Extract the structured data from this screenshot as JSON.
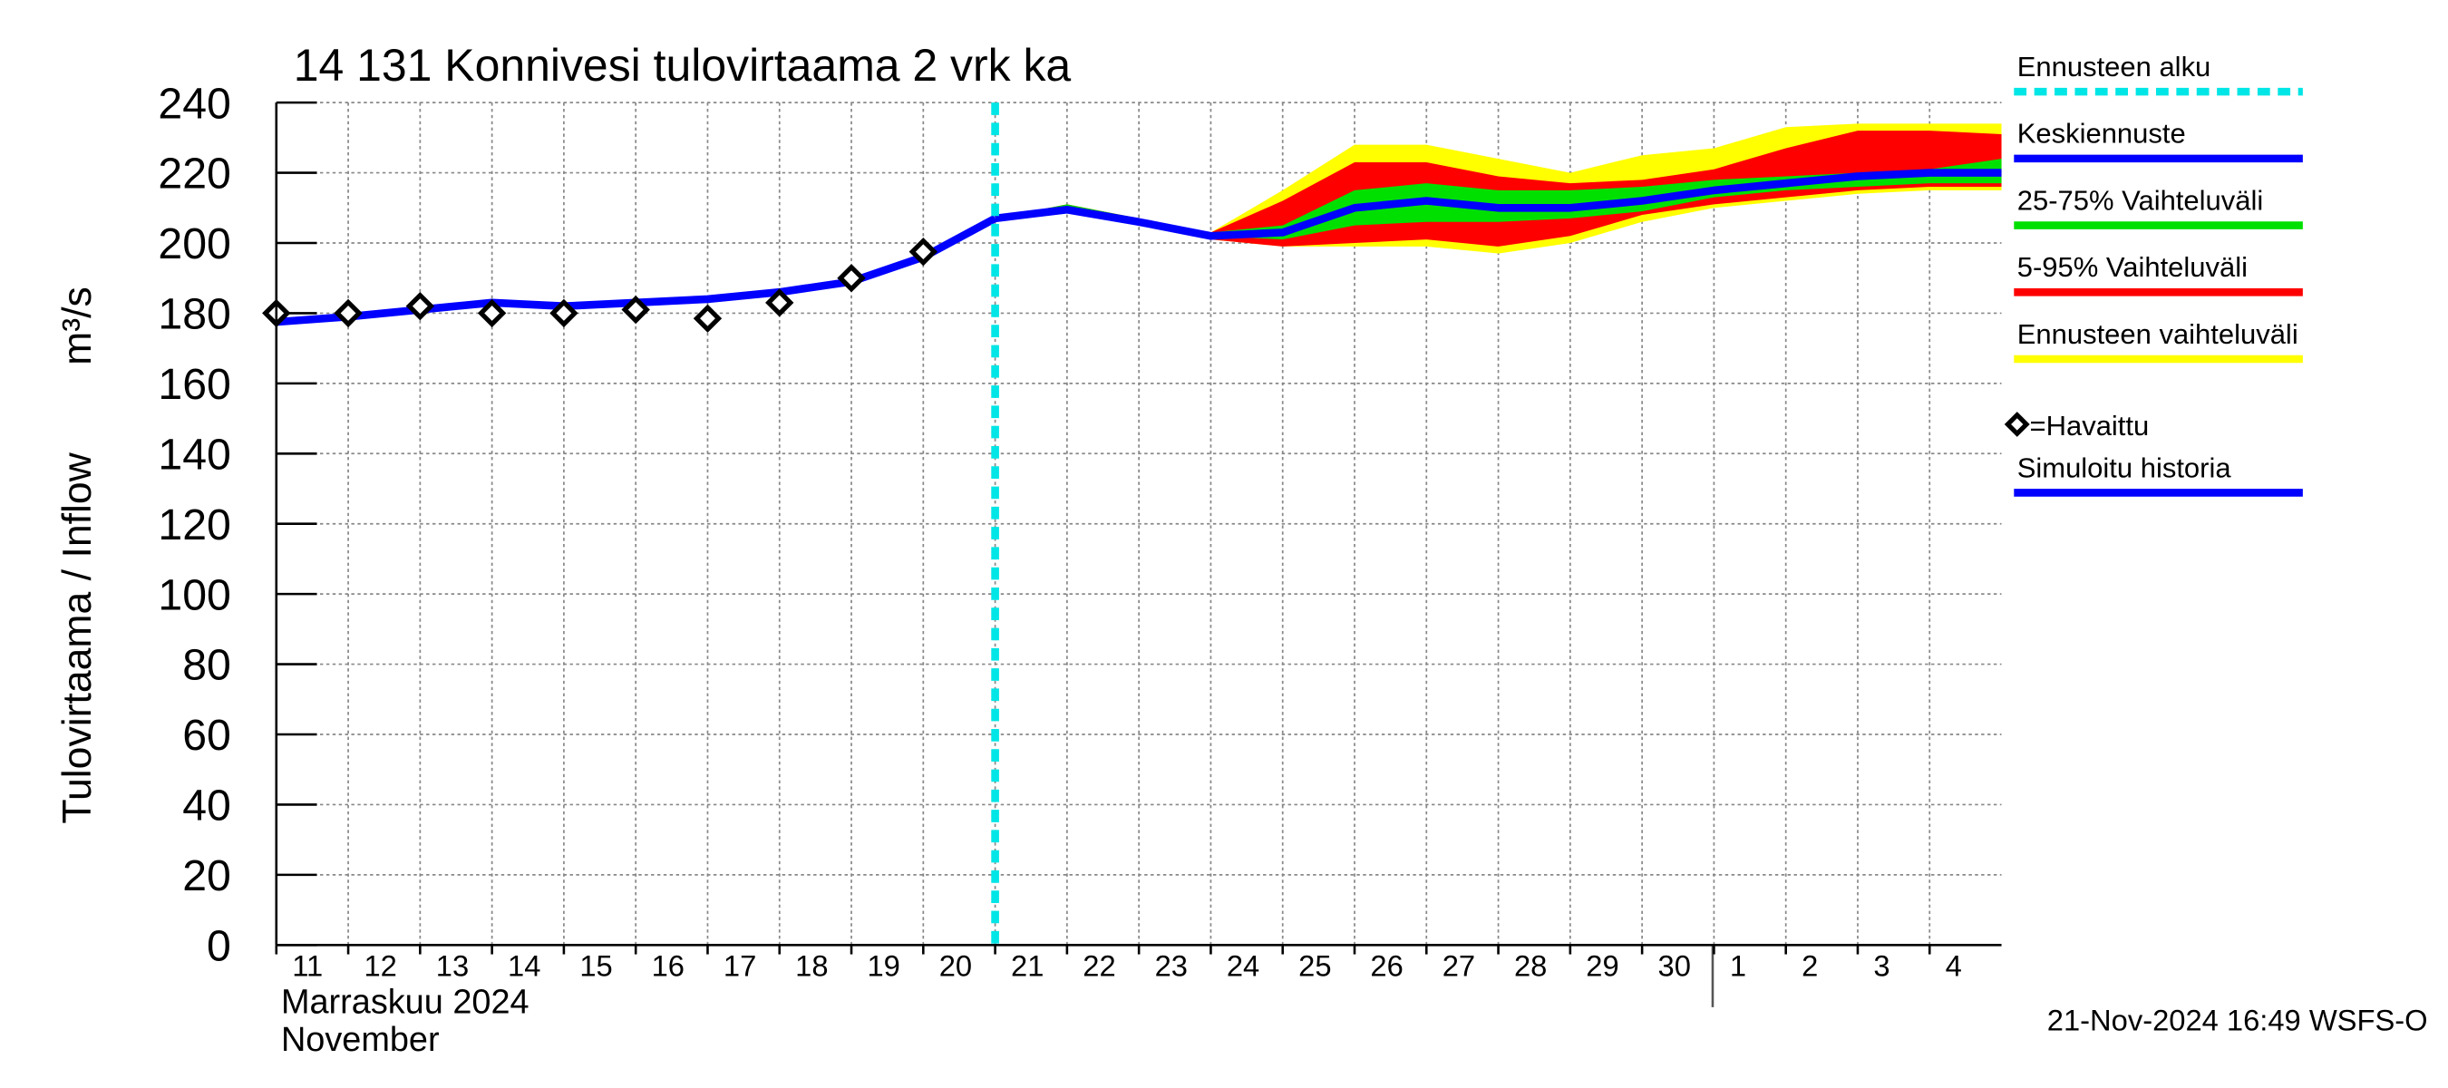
{
  "chart_data": {
    "type": "line",
    "title": "14 131 Konnivesi tulovirtaama 2 vrk ka",
    "y_label": "Tulovirtaama / Inflow",
    "y_unit": "m³/s",
    "x_label_fi": "Marraskuu 2024",
    "x_label_en": "November",
    "timestamp": "21-Nov-2024 16:49 WSFS-O",
    "xlim": [
      0,
      24
    ],
    "xticks": [
      {
        "value": 0,
        "label": "11"
      },
      {
        "value": 1,
        "label": "12"
      },
      {
        "value": 2,
        "label": "13"
      },
      {
        "value": 3,
        "label": "14"
      },
      {
        "value": 4,
        "label": "15"
      },
      {
        "value": 5,
        "label": "16"
      },
      {
        "value": 6,
        "label": "17"
      },
      {
        "value": 7,
        "label": "18"
      },
      {
        "value": 8,
        "label": "19"
      },
      {
        "value": 9,
        "label": "20"
      },
      {
        "value": 10,
        "label": "21"
      },
      {
        "value": 11,
        "label": "22"
      },
      {
        "value": 12,
        "label": "23"
      },
      {
        "value": 13,
        "label": "24"
      },
      {
        "value": 14,
        "label": "25"
      },
      {
        "value": 15,
        "label": "26"
      },
      {
        "value": 16,
        "label": "27"
      },
      {
        "value": 17,
        "label": "28"
      },
      {
        "value": 18,
        "label": "29"
      },
      {
        "value": 19,
        "label": "30"
      },
      {
        "value": 20,
        "label": "1"
      },
      {
        "value": 21,
        "label": "2"
      },
      {
        "value": 22,
        "label": "3"
      },
      {
        "value": 23,
        "label": "4"
      }
    ],
    "ylim": [
      0,
      240
    ],
    "yticks": [
      0,
      20,
      40,
      60,
      80,
      100,
      120,
      140,
      160,
      180,
      200,
      220,
      240
    ],
    "grid": true,
    "forecast_start": {
      "name": "Ennusteen alku",
      "x": 10,
      "color": "#00e5e5"
    },
    "bands": [
      {
        "name": "Ennusteen vaihteluväli",
        "color": "#ffff00",
        "x": [
          10,
          11,
          12,
          13,
          14,
          15,
          16,
          17,
          18,
          19,
          20,
          21,
          22,
          23,
          24
        ],
        "low": [
          207,
          210,
          206,
          201,
          199,
          199,
          199,
          197,
          200,
          206,
          210,
          212,
          214,
          215,
          215
        ],
        "high": [
          207,
          211,
          207,
          203,
          215,
          228,
          228,
          224,
          220,
          225,
          227,
          233,
          234,
          234,
          234
        ]
      },
      {
        "name": "5-95% Vaihteluväli",
        "color": "#ff0000",
        "x": [
          10,
          11,
          12,
          13,
          14,
          15,
          16,
          17,
          18,
          19,
          20,
          21,
          22,
          23,
          24
        ],
        "low": [
          207,
          210,
          206,
          201,
          199,
          200,
          201,
          199,
          202,
          208,
          211,
          213,
          215,
          216,
          216
        ],
        "high": [
          207,
          211,
          207,
          203,
          212,
          223,
          223,
          219,
          217,
          218,
          221,
          227,
          232,
          232,
          231
        ]
      },
      {
        "name": "25-75% Vaihteluväli",
        "color": "#00e000",
        "x": [
          10,
          11,
          12,
          13,
          14,
          15,
          16,
          17,
          18,
          19,
          20,
          21,
          22,
          23,
          24
        ],
        "low": [
          207,
          210,
          206,
          202,
          201,
          205,
          206,
          206,
          207,
          209,
          213,
          215,
          216,
          217,
          217
        ],
        "high": [
          207,
          211,
          207,
          203,
          205,
          215,
          217,
          215,
          215,
          216,
          218,
          219,
          220,
          221,
          224
        ]
      }
    ],
    "series": [
      {
        "name": "Simuloitu historia",
        "color": "#0000ff",
        "x": [
          0,
          1,
          2,
          3,
          4,
          5,
          6,
          7,
          8,
          9,
          10
        ],
        "values": [
          177.5,
          179,
          181,
          183,
          182,
          183,
          184,
          186,
          189,
          196,
          207
        ]
      },
      {
        "name": "Keskiennuste",
        "color": "#0000ff",
        "x": [
          10,
          11,
          12,
          13,
          14,
          15,
          16,
          17,
          18,
          19,
          20,
          21,
          22,
          23,
          24
        ],
        "values": [
          207,
          209.5,
          206,
          202,
          203,
          210,
          212,
          210,
          210,
          212,
          215,
          217,
          219,
          220,
          220
        ]
      }
    ],
    "observed": {
      "name": "=Havaittu",
      "x": [
        0,
        1,
        2,
        3,
        4,
        5,
        6,
        7,
        8,
        9
      ],
      "values": [
        180,
        180,
        182,
        180,
        180,
        181,
        178.5,
        183,
        190,
        197.5
      ]
    }
  }
}
